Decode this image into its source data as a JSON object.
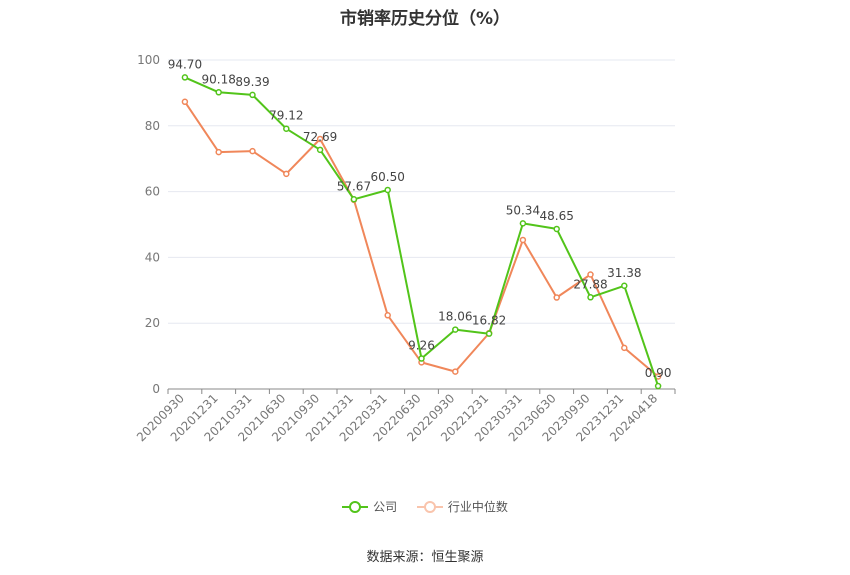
{
  "chart_data": {
    "type": "line",
    "title": "市销率历史分位（%）",
    "categories": [
      "20200930",
      "20201231",
      "20210331",
      "20210630",
      "20210930",
      "20211231",
      "20220331",
      "20220630",
      "20220930",
      "20221231",
      "20230331",
      "20230630",
      "20230930",
      "20231231",
      "20240418"
    ],
    "series": [
      {
        "name": "公司",
        "color": "#52c41a",
        "values": [
          94.7,
          90.18,
          89.39,
          79.12,
          72.69,
          57.67,
          60.5,
          9.26,
          18.06,
          16.82,
          50.34,
          48.65,
          27.88,
          31.38,
          0.9
        ],
        "labels": [
          "94.70",
          "90.18",
          "89.39",
          "79.12",
          "72.69",
          "57.67",
          "60.50",
          "9.26",
          "18.06",
          "16.82",
          "50.34",
          "48.65",
          "27.88",
          "31.38",
          "0.90"
        ]
      },
      {
        "name": "行业中位数",
        "color": "#f0875a",
        "values": [
          87.3,
          72.0,
          72.3,
          65.4,
          76.0,
          57.5,
          22.4,
          8.1,
          5.3,
          17.0,
          45.3,
          27.8,
          34.8,
          12.5,
          3.8
        ]
      }
    ],
    "yticks": [
      "0",
      "20",
      "40",
      "60",
      "80",
      "100"
    ],
    "ylim": [
      0,
      100
    ],
    "grid": true,
    "legend_position": "bottom"
  },
  "source": "数据来源：恒生聚源"
}
